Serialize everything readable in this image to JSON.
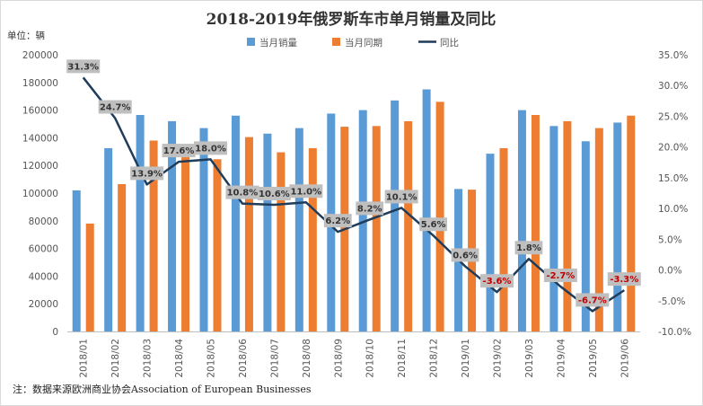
{
  "chart_data": {
    "type": "bar",
    "title": "2018-2019年俄罗斯车市单月销量及同比",
    "unit_label": "单位：辆",
    "note": "注：数据来源欧洲商业协会Association of European Businesses",
    "categories": [
      "2018/01",
      "2018/02",
      "2018/03",
      "2018/04",
      "2018/05",
      "2018/06",
      "2018/07",
      "2018/08",
      "2018/09",
      "2018/10",
      "2018/11",
      "2018/12",
      "2019/01",
      "2019/02",
      "2019/03",
      "2019/04",
      "2019/05",
      "2019/06"
    ],
    "series": [
      {
        "name": "当月销量",
        "kind": "bar",
        "axis": "left",
        "color": "#5B9BD5",
        "values": [
          102000,
          132500,
          156500,
          152000,
          147000,
          156000,
          143000,
          147000,
          157500,
          160000,
          167000,
          175000,
          103000,
          128500,
          160000,
          148500,
          137500,
          151000
        ]
      },
      {
        "name": "当月同期",
        "kind": "bar",
        "axis": "left",
        "color": "#ED7D31",
        "values": [
          78000,
          106500,
          138000,
          130000,
          124500,
          140500,
          129500,
          132500,
          148000,
          148500,
          152000,
          166000,
          102500,
          132500,
          156500,
          152000,
          147000,
          156000
        ]
      },
      {
        "name": "同比",
        "kind": "line",
        "axis": "right",
        "color": "#1F3C5A",
        "values": [
          31.3,
          24.7,
          13.9,
          17.6,
          18.0,
          10.8,
          10.6,
          11.0,
          6.2,
          8.2,
          10.1,
          5.6,
          0.6,
          -3.6,
          1.8,
          -2.7,
          -6.7,
          -3.3
        ],
        "labels": [
          "31.3%",
          "24.7%",
          "13.9%",
          "17.6%",
          "18.0%",
          "10.8%",
          "10.6%",
          "11.0%",
          "6.2%",
          "8.2%",
          "10.1%",
          "5.6%",
          "0.6%",
          "-3.6%",
          "1.8%",
          "-2.7%",
          "-6.7%",
          "-3.3%"
        ]
      }
    ],
    "left_axis": {
      "min": 0,
      "max": 200000,
      "step": 20000,
      "tick_labels": [
        "0",
        "20000",
        "40000",
        "60000",
        "80000",
        "100000",
        "120000",
        "140000",
        "160000",
        "180000",
        "200000"
      ]
    },
    "right_axis": {
      "min": -10,
      "max": 35,
      "step": 5,
      "tick_labels": [
        "-10.0%",
        "-5.0%",
        "0.0%",
        "5.0%",
        "10.0%",
        "15.0%",
        "20.0%",
        "25.0%",
        "30.0%",
        "35.0%"
      ]
    },
    "grid": false,
    "legend_position": "top-center",
    "label_colors": {
      "positive": "#333333",
      "negative": "#C00000",
      "box": "#BFBFBF"
    }
  }
}
